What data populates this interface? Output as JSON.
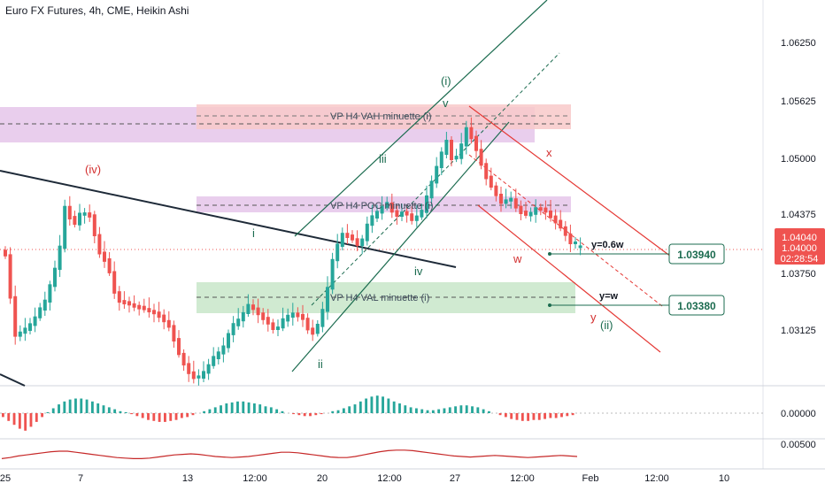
{
  "header": {
    "title": "Euro FX Futures, 4h, CME, Heikin Ashi"
  },
  "colors": {
    "up": "#26a69a",
    "down": "#ef5350",
    "wave_green": "#1b6b4f",
    "wave_red": "#d32f2f",
    "vp_purple": "#e1bee7",
    "vp_pink": "#f8c9c9",
    "vp_green": "#c8e6c9",
    "price_badge": "#ef5350",
    "grid": "#e6e6e6"
  },
  "chart_data": {
    "type": "candlestick",
    "style": "Heikin Ashi",
    "y_ticks": [
      "1.06250",
      "1.05625",
      "1.05000",
      "1.04375",
      "1.03750",
      "1.03125"
    ],
    "x_ticks": [
      "25",
      "7",
      "13",
      "12:00",
      "20",
      "12:00",
      "27",
      "12:00",
      "Feb",
      "12:00",
      "10"
    ],
    "y_range": [
      1.0285,
      1.066
    ],
    "price_badges": {
      "last": "1.04040",
      "prev": "1.04000",
      "countdown": "02:28:54"
    },
    "levels": [
      {
        "label": "1.03940",
        "price": 1.0394
      },
      {
        "label": "1.03380",
        "price": 1.0338
      }
    ],
    "vp_labels": {
      "vah": "VP H4 VAH minuette (i)",
      "poc": "VP H4 POC minuette (i)",
      "val": "VP H4 VAL minuette (i)"
    },
    "wave_labels": {
      "iv_cap": "(iv)",
      "i": "i",
      "ii": "ii",
      "iii": "iii",
      "iv": "iv",
      "v": "v",
      "wave_i": "(i)",
      "x": "x",
      "w": "w",
      "y": "y",
      "wave_ii": "(ii)",
      "ratio_06": "y=0.6w",
      "ratio_eq": "y=w"
    },
    "oscillator": {
      "ticks": [
        "0.00000",
        "0.00500"
      ],
      "values": [
        -4,
        -8,
        -12,
        -16,
        -18,
        -14,
        -9,
        -4,
        1,
        5,
        9,
        12,
        14,
        15,
        15,
        14,
        12,
        10,
        8,
        6,
        4,
        2,
        1,
        -1,
        -3,
        -5,
        -7,
        -8,
        -9,
        -9,
        -8,
        -7,
        -5,
        -4,
        -2,
        0,
        2,
        4,
        6,
        8,
        10,
        11,
        12,
        12,
        11,
        10,
        9,
        7,
        6,
        4,
        2,
        0,
        -1,
        -2,
        -3,
        -3,
        -2,
        -1,
        0,
        2,
        3,
        5,
        7,
        9,
        12,
        15,
        17,
        18,
        17,
        15,
        12,
        10,
        8,
        6,
        5,
        4,
        3,
        3,
        4,
        5,
        6,
        7,
        8,
        8,
        7,
        6,
        4,
        2,
        0,
        -2,
        -4,
        -6,
        -7,
        -8,
        -8,
        -7,
        -7,
        -6,
        -5,
        -5,
        -4,
        -3,
        -2
      ]
    },
    "momentum": {
      "values": [
        -0.4,
        -0.2,
        0.1,
        0.3,
        0.5,
        0.7,
        0.9,
        1.0,
        1.0,
        0.8,
        0.6,
        0.4,
        0.2,
        0.0,
        -0.2,
        -0.3,
        -0.4,
        -0.4,
        -0.3,
        -0.1,
        0.1,
        0.3,
        0.4,
        0.5,
        0.4,
        0.2,
        0.0,
        -0.1,
        -0.2,
        -0.1,
        0.0,
        0.2,
        0.4,
        0.6,
        0.8,
        0.8,
        0.7,
        0.5,
        0.3,
        0.1,
        -0.1,
        -0.2,
        -0.2,
        0.0,
        0.3,
        0.6,
        0.9,
        1.1,
        1.2,
        1.2,
        1.1,
        0.9,
        0.7,
        0.5,
        0.3,
        0.1,
        0.0,
        -0.1,
        0.0,
        0.1,
        0.2,
        0.1,
        0.0,
        -0.1,
        -0.2,
        -0.1,
        0.0,
        0.1,
        0.2,
        0.1,
        0.0
      ]
    }
  }
}
